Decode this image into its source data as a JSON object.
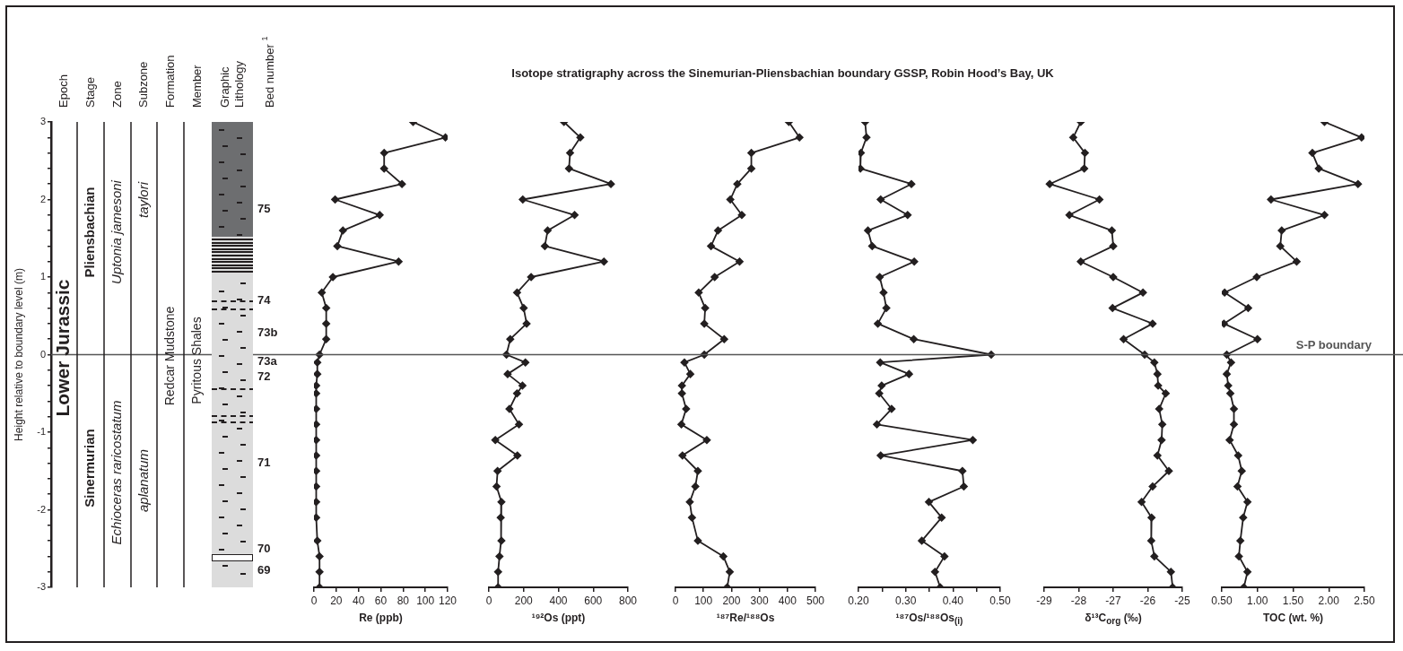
{
  "chart_data": [
    {
      "type": "line",
      "values": [
        null,
        null,
        null,
        null,
        null,
        null,
        null,
        null
      ],
      "categories": [
        "Epoch",
        "Stage",
        "Zone",
        "Subzone",
        "Formation",
        "Member",
        "Graphic Lithology",
        "Bed number $^{1}$"
      ],
      "ylabel": "Height relative to boundary level (m)",
      "ylim": [
        -3,
        3
      ],
      "yticks": [
        -3,
        {
          "value": -2.8,
          "label": null
        },
        {
          "value": -2.6,
          "label": null
        },
        {
          "value": -2.4,
          "label": null
        },
        {
          "value": -2.2,
          "label": null
        },
        -2,
        {
          "value": -1.8,
          "label": null
        },
        {
          "value": -1.6,
          "label": null
        },
        {
          "value": -1.4,
          "label": null
        },
        {
          "value": -1.2,
          "label": null
        },
        -1,
        {
          "value": -0.8,
          "label": null
        },
        {
          "value": -0.6,
          "label": null
        },
        {
          "value": -0.4,
          "label": null
        },
        {
          "value": -0.2,
          "label": null
        },
        0,
        {
          "value": 0.2,
          "label": null
        },
        {
          "value": 0.4,
          "label": null
        },
        {
          "value": 0.6,
          "label": null
        },
        {
          "value": 0.8,
          "label": null
        },
        1,
        {
          "value": 1.2,
          "label": null
        },
        {
          "value": 1.4,
          "label": null
        },
        {
          "value": 1.6,
          "label": null
        },
        {
          "value": 1.8,
          "label": null
        },
        2,
        {
          "value": 2.2,
          "label": null
        },
        {
          "value": 2.4,
          "label": null
        },
        {
          "value": 2.6,
          "label": null
        },
        {
          "value": 2.8,
          "label": null
        },
        3
      ],
      "ref_lines": [
        {
          "axis": "y",
          "value": 0,
          "color": "#555555"
        }
      ],
      "annotations": [
        "Lower Jurassic",
        "Pliensbachian",
        "Sinermurian",
        "Uptonia jamesoni",
        "Echioceras raricostatum",
        "taylori",
        "aplanatum",
        "Redcar Mudstone",
        "Pyritous Shales",
        "75",
        "74",
        "73b",
        "73a",
        "72",
        "71",
        "70",
        "69"
      ]
    },
    {
      "type": "line",
      "xlabel": "Re (ppb)",
      "color": "#231f20",
      "marker": "diamond",
      "tick_labels": "x",
      "ylim": [
        -3,
        3
      ],
      "xlim": [
        0,
        120
      ],
      "xticks": [
        0,
        20,
        40,
        60,
        80,
        100,
        120
      ],
      "x": [
        89,
        118,
        63,
        63,
        79,
        19,
        59,
        26,
        21,
        76,
        17,
        7,
        11,
        11,
        11,
        5,
        3,
        3,
        2,
        2,
        2,
        2,
        2,
        2,
        2,
        2,
        2,
        2,
        3,
        5,
        5,
        5
      ],
      "values": [
        3,
        2.8,
        2.6,
        2.4,
        2.2,
        2,
        1.8,
        1.6,
        1.4,
        1.2,
        1,
        0.8,
        0.6,
        0.4,
        0.2,
        0,
        -0.1,
        -0.25,
        -0.4,
        -0.5,
        -0.7,
        -0.9,
        -1.1,
        -1.3,
        -1.5,
        -1.7,
        -1.9,
        -2.1,
        -2.4,
        -2.6,
        -2.8,
        -3
      ],
      "ref_lines": [
        {
          "axis": "y",
          "value": 0,
          "color": "#555555"
        }
      ]
    },
    {
      "type": "line",
      "xlabel": "¹⁹²Os (ppt)",
      "color": "#231f20",
      "marker": "diamond",
      "tick_labels": "x",
      "ylim": [
        -3,
        3
      ],
      "xlim": [
        0,
        800
      ],
      "xticks": [
        0,
        200,
        400,
        600,
        800
      ],
      "x": [
        432,
        526,
        467,
        461,
        702,
        195,
        493,
        338,
        322,
        662,
        243,
        162,
        200,
        217,
        123,
        101,
        210,
        108,
        193,
        162,
        118,
        173,
        37,
        164,
        50,
        44,
        72,
        68,
        72,
        61,
        53,
        53
      ],
      "values": [
        3,
        2.8,
        2.6,
        2.4,
        2.2,
        2,
        1.8,
        1.6,
        1.4,
        1.2,
        1,
        0.8,
        0.6,
        0.4,
        0.2,
        0,
        -0.1,
        -0.25,
        -0.4,
        -0.5,
        -0.7,
        -0.9,
        -1.1,
        -1.3,
        -1.5,
        -1.7,
        -1.9,
        -2.1,
        -2.4,
        -2.6,
        -2.8,
        -3
      ],
      "ref_lines": [
        {
          "axis": "y",
          "value": 0,
          "color": "#555555"
        }
      ]
    },
    {
      "type": "line",
      "title": "Isotope stratigraphy across the Sinemurian-Pliensbachian boundary GSSP, Robin Hood’s Bay, UK",
      "xlabel": "¹⁸⁷Re/¹⁸⁸Os",
      "color": "#231f20",
      "marker": "diamond",
      "tick_labels": "x",
      "ylim": [
        -3,
        3
      ],
      "xlim": [
        0,
        500
      ],
      "xticks": [
        0,
        100,
        200,
        300,
        400,
        500
      ],
      "x": [
        405,
        443,
        271,
        271,
        221,
        196,
        237,
        152,
        127,
        229,
        140,
        83,
        106,
        103,
        174,
        103,
        32,
        53,
        23,
        23,
        38,
        21,
        112,
        25,
        80,
        71,
        51,
        59,
        80,
        171,
        194,
        185
      ],
      "values": [
        3,
        2.8,
        2.6,
        2.4,
        2.2,
        2,
        1.8,
        1.6,
        1.4,
        1.2,
        1,
        0.8,
        0.6,
        0.4,
        0.2,
        0,
        -0.1,
        -0.25,
        -0.4,
        -0.5,
        -0.7,
        -0.9,
        -1.1,
        -1.3,
        -1.5,
        -1.7,
        -1.9,
        -2.1,
        -2.4,
        -2.6,
        -2.8,
        -3
      ],
      "ref_lines": [
        {
          "axis": "y",
          "value": 0,
          "color": "#555555"
        }
      ]
    },
    {
      "type": "line",
      "xlabel": "¹⁸⁷Os/¹⁸⁸Os$_{(i)}$",
      "color": "#231f20",
      "marker": "diamond",
      "tick_labels": "x",
      "ylim": [
        -3,
        3
      ],
      "xlim": [
        0.2,
        0.5
      ],
      "xticks": [
        {
          "value": 0.2,
          "label": "0.20"
        },
        {
          "value": 0.25,
          "label": null
        },
        {
          "value": 0.3,
          "label": "0.30"
        },
        {
          "value": 0.35,
          "label": null
        },
        {
          "value": 0.4,
          "label": "0.40"
        },
        {
          "value": 0.45,
          "label": null
        },
        {
          "value": 0.5,
          "label": "0.50"
        }
      ],
      "x": [
        0.214,
        0.217,
        0.205,
        0.204,
        0.312,
        0.247,
        0.304,
        0.22,
        0.229,
        0.318,
        0.245,
        0.253,
        0.259,
        0.241,
        0.317,
        0.481,
        0.246,
        0.307,
        0.249,
        0.244,
        0.27,
        0.239,
        0.442,
        0.247,
        0.42,
        0.423,
        0.349,
        0.376,
        0.334,
        0.382,
        0.362,
        0.373
      ],
      "values": [
        3,
        2.8,
        2.6,
        2.4,
        2.2,
        2,
        1.8,
        1.6,
        1.4,
        1.2,
        1,
        0.8,
        0.6,
        0.4,
        0.2,
        0,
        -0.1,
        -0.25,
        -0.4,
        -0.5,
        -0.7,
        -0.9,
        -1.1,
        -1.3,
        -1.5,
        -1.7,
        -1.9,
        -2.1,
        -2.4,
        -2.6,
        -2.8,
        -3
      ],
      "ref_lines": [
        {
          "axis": "y",
          "value": 0,
          "color": "#555555"
        }
      ]
    },
    {
      "type": "line",
      "xlabel": "δ¹³C$_{org}$ (‰)",
      "color": "#231f20",
      "marker": "diamond",
      "tick_labels": "x",
      "ylim": [
        -3,
        3
      ],
      "xlim": [
        -29,
        -25
      ],
      "xticks": [
        -29,
        -28,
        -27,
        -26,
        -25
      ],
      "x": [
        -27.94,
        -28.16,
        -27.82,
        -27.84,
        -28.84,
        -27.4,
        -28.27,
        -27.04,
        -27.0,
        -27.94,
        -27.0,
        -26.14,
        -27.02,
        -25.86,
        -26.7,
        -26.09,
        -25.81,
        -25.72,
        -25.7,
        -25.48,
        -25.67,
        -25.58,
        -25.6,
        -25.72,
        -25.39,
        -25.86,
        -26.18,
        -25.89,
        -25.9,
        -25.81,
        -25.33,
        -25.28
      ],
      "values": [
        3,
        2.8,
        2.6,
        2.4,
        2.2,
        2,
        1.8,
        1.6,
        1.4,
        1.2,
        1,
        0.8,
        0.6,
        0.4,
        0.2,
        0,
        -0.1,
        -0.25,
        -0.4,
        -0.5,
        -0.7,
        -0.9,
        -1.1,
        -1.3,
        -1.5,
        -1.7,
        -1.9,
        -2.1,
        -2.4,
        -2.6,
        -2.8,
        -3
      ],
      "ref_lines": [
        {
          "axis": "y",
          "value": 0,
          "color": "#555555"
        }
      ]
    },
    {
      "type": "line",
      "xlabel": "TOC (wt. %)",
      "color": "#231f20",
      "marker": "diamond",
      "tick_labels": "x",
      "ylim": [
        -3,
        3
      ],
      "xlim": [
        0.5,
        2.5
      ],
      "xticks": [
        {
          "value": 0.5,
          "label": "0.50"
        },
        {
          "value": 1,
          "label": "1.00"
        },
        {
          "value": 1.5,
          "label": "1.50"
        },
        {
          "value": 2,
          "label": "2.00"
        },
        {
          "value": 2.5,
          "label": "2.50"
        }
      ],
      "x": [
        1.94,
        2.46,
        1.77,
        1.86,
        2.41,
        1.19,
        1.94,
        1.34,
        1.32,
        1.55,
        0.99,
        0.54,
        0.87,
        0.53,
        1.0,
        0.57,
        0.63,
        0.57,
        0.59,
        0.62,
        0.67,
        0.67,
        0.61,
        0.73,
        0.78,
        0.72,
        0.86,
        0.8,
        0.76,
        0.74,
        0.86,
        0.81
      ],
      "values": [
        3,
        2.8,
        2.6,
        2.4,
        2.2,
        2,
        1.8,
        1.6,
        1.4,
        1.2,
        1,
        0.8,
        0.6,
        0.4,
        0.2,
        0,
        -0.1,
        -0.25,
        -0.4,
        -0.5,
        -0.7,
        -0.9,
        -1.1,
        -1.3,
        -1.5,
        -1.7,
        -1.9,
        -2.1,
        -2.4,
        -2.6,
        -2.8,
        -3
      ],
      "ref_lines": [
        {
          "axis": "y",
          "value": 0,
          "color": "#555555",
          "label": "S-P boundary"
        }
      ]
    }
  ]
}
